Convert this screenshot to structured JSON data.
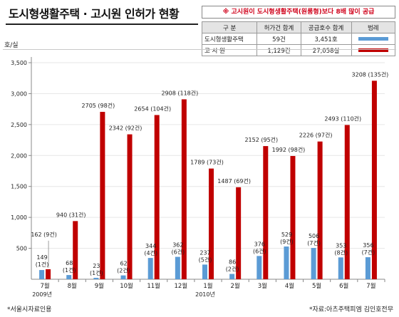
{
  "title": "도시형생활주택 · 고시원 인허가 현황",
  "notice": "※ 고시원이 도시형생활주택(원룸형)보다 8배 많이 공급",
  "legend": {
    "headers": [
      "구 분",
      "허가건 합계",
      "공급호수 합계",
      "범례"
    ],
    "rows": [
      {
        "name": "도시형생활주택",
        "permits": "59건",
        "units": "3,451호",
        "color": "#5b9bd5"
      },
      {
        "name": "고 시 원",
        "permits": "1,129건",
        "units": "27,058실",
        "color": "#c00000"
      }
    ]
  },
  "unit_label": "호/실",
  "footer_left": "*서울시자료인용",
  "footer_right": "*자료:아츠주택피엠 김인호전무",
  "colors": {
    "blue": "#5b9bd5",
    "red": "#c00000",
    "axis": "#888888",
    "grid": "#e6e6e6"
  },
  "chart_data": {
    "type": "bar",
    "categories": [
      "7월",
      "8월",
      "9월",
      "10월",
      "11월",
      "12월",
      "1월",
      "2월",
      "3월",
      "4월",
      "5월",
      "6월",
      "7월"
    ],
    "year_labels": [
      {
        "text": "2009년",
        "index": 0
      },
      {
        "text": "2010년",
        "index": 6
      }
    ],
    "ylim": [
      0,
      3500
    ],
    "yticks": [
      500,
      1000,
      1500,
      2000,
      2500,
      3000,
      3500
    ],
    "ytick_labels": [
      "500",
      "1,000",
      "1,500",
      "2,000",
      "2,500",
      "3,000",
      "3,500"
    ],
    "series": [
      {
        "name": "도시형생활주택",
        "values": [
          149,
          68,
          23,
          62,
          344,
          362,
          237,
          86,
          376,
          529,
          506,
          353,
          356
        ],
        "labels": [
          "149",
          "68",
          "23",
          "62",
          "344",
          "362",
          "237",
          "86",
          "376",
          "529",
          "506",
          "353",
          "356"
        ],
        "sublabels": [
          "(1건)",
          "(1건)",
          "(1건)",
          "(2건)",
          "(4건)",
          "(6건)",
          "(5건)",
          "(2건)",
          "(6건)",
          "(9건)",
          "(7건)",
          "(8건)",
          "(7건)"
        ]
      },
      {
        "name": "고 시 원",
        "values": [
          162,
          940,
          2705,
          2342,
          2654,
          2908,
          1789,
          1487,
          2152,
          1992,
          2226,
          2493,
          3208
        ],
        "labels": [
          "162 (9건)",
          "940 (31건)",
          "2705 (98건)",
          "2342 (92건)",
          "2654 (104건)",
          "2908 (118건)",
          "1789 (73건)",
          "1487 (69건)",
          "2152 (95건)",
          "1992 (98건)",
          "2226 (97건)",
          "2493 (110건)",
          "3208 (135건)"
        ]
      }
    ]
  }
}
